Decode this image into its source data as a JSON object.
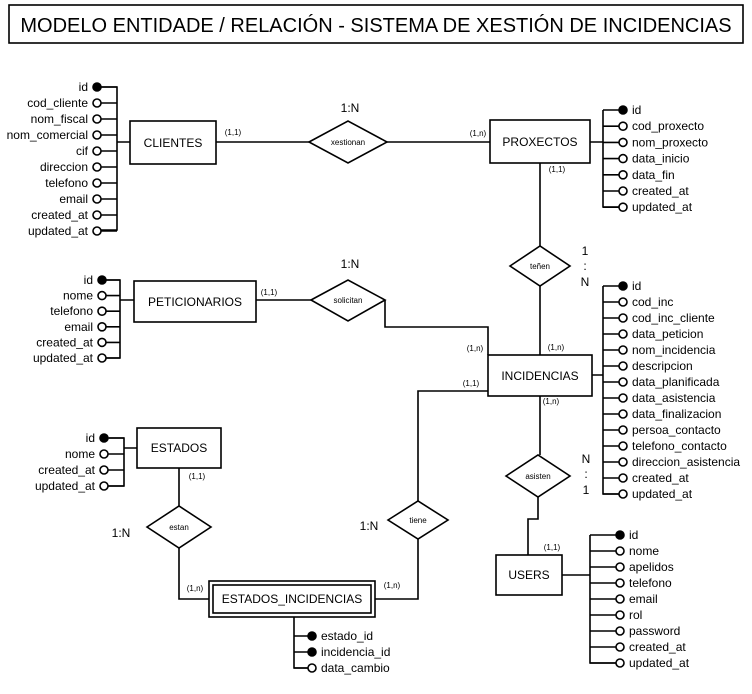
{
  "title": "MODELO ENTIDADE / RELACIÓN - SISTEMA DE XESTIÓN DE INCIDENCIAS",
  "entities": {
    "clientes": "CLIENTES",
    "proxectos": "PROXECTOS",
    "peticionarios": "PETICIONARIOS",
    "incidencias": "INCIDENCIAS",
    "estados": "ESTADOS",
    "users": "USERS",
    "estados_incidencias": "ESTADOS_INCIDENCIAS"
  },
  "relations": {
    "xestionan": "xestionan",
    "tenen": "teñen",
    "solicitan": "solicitan",
    "asisten": "asisten",
    "tiene": "tiene",
    "estan": "estan"
  },
  "ratios": {
    "xestionan": "1:N",
    "solicitan": "1:N",
    "tiene": "1:N",
    "estan": "1:N",
    "tenen": [
      "1",
      ":",
      "N"
    ],
    "asisten": [
      "N",
      ":",
      "1"
    ]
  },
  "cardinalities": {
    "clientes_xestionan": "(1,1)",
    "proxectos_xestionan": "(1,n)",
    "proxectos_tenen": "(1,1)",
    "incidencias_tenen": "(1,n)",
    "peticionarios_solicitan": "(1,1)",
    "incidencias_solicitan": "(1,n)",
    "incidencias_tiene": "(1,1)",
    "incidencias_asisten": "(1,n)",
    "users_asisten": "(1,1)",
    "estados_estan": "(1,1)",
    "ei_estan": "(1,n)",
    "ei_tiene": "(1,n)"
  },
  "attributes": {
    "clientes": [
      {
        "name": "id",
        "key": true
      },
      {
        "name": "cod_cliente",
        "key": false
      },
      {
        "name": "nom_fiscal",
        "key": false
      },
      {
        "name": "nom_comercial",
        "key": false
      },
      {
        "name": "cif",
        "key": false
      },
      {
        "name": "direccion",
        "key": false
      },
      {
        "name": "telefono",
        "key": false
      },
      {
        "name": "email",
        "key": false
      },
      {
        "name": "created_at",
        "key": false
      },
      {
        "name": "updated_at",
        "key": false
      }
    ],
    "proxectos": [
      {
        "name": "id",
        "key": true
      },
      {
        "name": "cod_proxecto",
        "key": false
      },
      {
        "name": "nom_proxecto",
        "key": false
      },
      {
        "name": "data_inicio",
        "key": false
      },
      {
        "name": "data_fin",
        "key": false
      },
      {
        "name": "created_at",
        "key": false
      },
      {
        "name": "updated_at",
        "key": false
      }
    ],
    "peticionarios": [
      {
        "name": "id",
        "key": true
      },
      {
        "name": "nome",
        "key": false
      },
      {
        "name": "telefono",
        "key": false
      },
      {
        "name": "email",
        "key": false
      },
      {
        "name": "created_at",
        "key": false
      },
      {
        "name": "updated_at",
        "key": false
      }
    ],
    "incidencias": [
      {
        "name": "id",
        "key": true
      },
      {
        "name": "cod_inc",
        "key": false
      },
      {
        "name": "cod_inc_cliente",
        "key": false
      },
      {
        "name": "data_peticion",
        "key": false
      },
      {
        "name": "nom_incidencia",
        "key": false
      },
      {
        "name": "descripcion",
        "key": false
      },
      {
        "name": "data_planificada",
        "key": false
      },
      {
        "name": "data_asistencia",
        "key": false
      },
      {
        "name": "data_finalizacion",
        "key": false
      },
      {
        "name": "persoa_contacto",
        "key": false
      },
      {
        "name": "telefono_contacto",
        "key": false
      },
      {
        "name": "direccion_asistencia",
        "key": false
      },
      {
        "name": "created_at",
        "key": false
      },
      {
        "name": "updated_at",
        "key": false
      }
    ],
    "estados": [
      {
        "name": "id",
        "key": true
      },
      {
        "name": "nome",
        "key": false
      },
      {
        "name": "created_at",
        "key": false
      },
      {
        "name": "updated_at",
        "key": false
      }
    ],
    "users": [
      {
        "name": "id",
        "key": true
      },
      {
        "name": "nome",
        "key": false
      },
      {
        "name": "apelidos",
        "key": false
      },
      {
        "name": "telefono",
        "key": false
      },
      {
        "name": "email",
        "key": false
      },
      {
        "name": "rol",
        "key": false
      },
      {
        "name": "password",
        "key": false
      },
      {
        "name": "created_at",
        "key": false
      },
      {
        "name": "updated_at",
        "key": false
      }
    ],
    "estados_incidencias": [
      {
        "name": "estado_id",
        "key": true
      },
      {
        "name": "incidencia_id",
        "key": true
      },
      {
        "name": "data_cambio",
        "key": false
      }
    ]
  }
}
